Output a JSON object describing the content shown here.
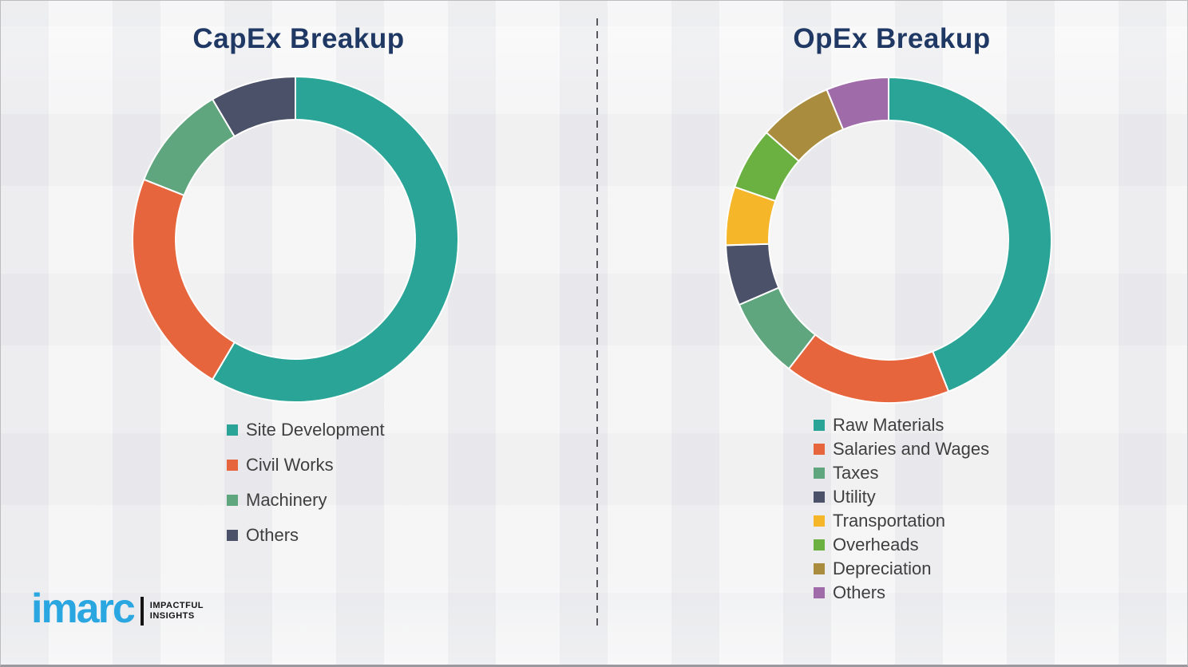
{
  "page": {
    "background": "#f0f0f2",
    "divider_color": "#58585c",
    "title_color": "#1f3864",
    "legend_text_color": "#3f3f3f"
  },
  "chart_data": [
    {
      "type": "pie",
      "subtype": "donut",
      "title": "CapEx Breakup",
      "units": "percent",
      "start_angle_deg": 0,
      "direction": "clockwise",
      "inner_radius_ratio": 0.735,
      "legend_position": "below-left",
      "slices": [
        {
          "label": "Site Development",
          "value": 58.5,
          "color": "#2AA496"
        },
        {
          "label": "Civil Works",
          "value": 22.5,
          "color": "#E6653C"
        },
        {
          "label": "Machinery",
          "value": 10.5,
          "color": "#5FA57E"
        },
        {
          "label": "Others",
          "value": 8.5,
          "color": "#4A5168"
        }
      ]
    },
    {
      "type": "pie",
      "subtype": "donut",
      "title": "OpEx Breakup",
      "units": "percent",
      "start_angle_deg": 0,
      "direction": "clockwise",
      "inner_radius_ratio": 0.735,
      "legend_position": "below-left",
      "slices": [
        {
          "label": "Raw Materials",
          "value": 44.0,
          "color": "#2AA496"
        },
        {
          "label": "Salaries and Wages",
          "value": 16.5,
          "color": "#E6653C"
        },
        {
          "label": "Taxes",
          "value": 8.0,
          "color": "#5FA57E"
        },
        {
          "label": "Utility",
          "value": 6.0,
          "color": "#4A5168"
        },
        {
          "label": "Transportation",
          "value": 5.8,
          "color": "#F5B62A"
        },
        {
          "label": "Overheads",
          "value": 6.2,
          "color": "#6BB142"
        },
        {
          "label": "Depreciation",
          "value": 7.3,
          "color": "#A98C3E"
        },
        {
          "label": "Others",
          "value": 6.2,
          "color": "#9F6BA8"
        }
      ]
    }
  ],
  "logo": {
    "brand": "imarc",
    "brand_color": "#2aa7e0",
    "tagline_line1": "IMPACTFUL",
    "tagline_line2": "INSIGHTS"
  }
}
